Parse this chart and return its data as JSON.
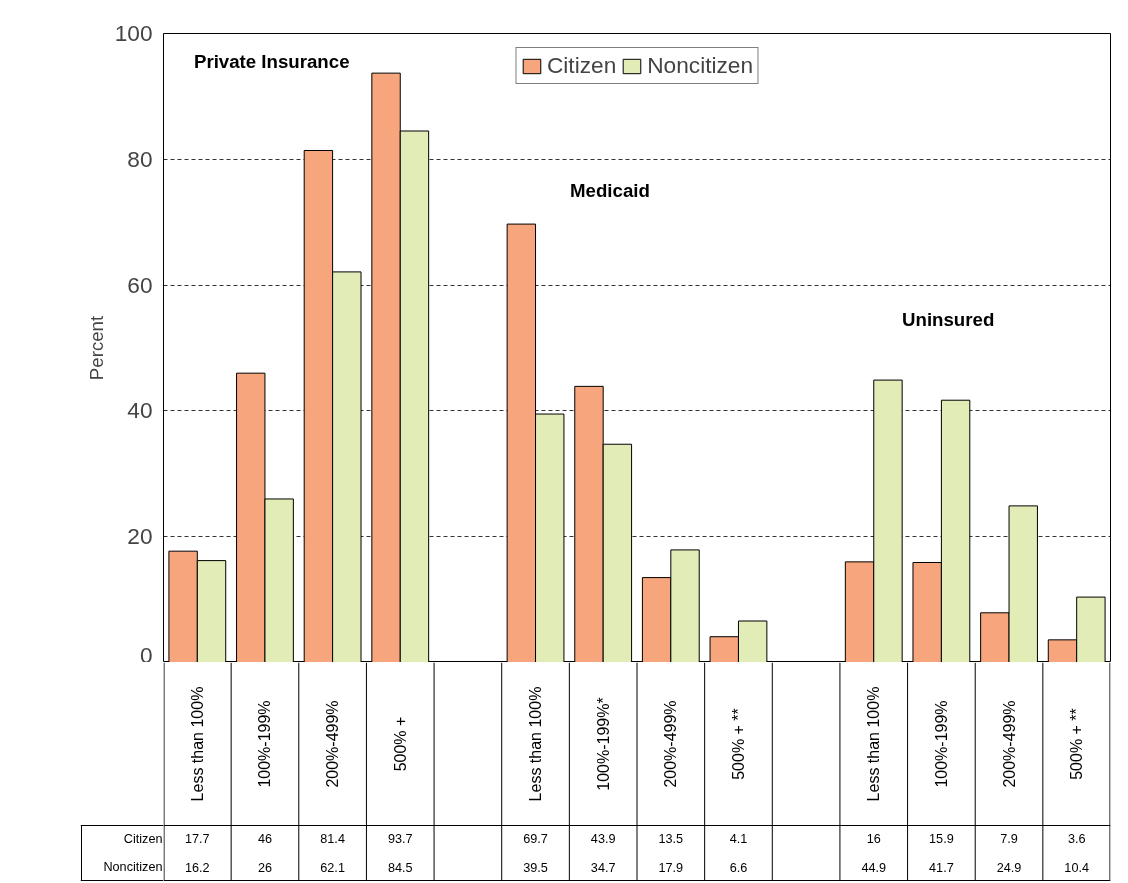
{
  "chart_data": {
    "type": "bar",
    "ylabel": "Percent",
    "categories": [
      "Less than 100%",
      "100%-199%",
      "200%-499%",
      "500% +",
      null,
      "Less than 100%",
      "100%-199%*",
      "200%-499%",
      "500% + **",
      null,
      "Less than 100%",
      "100%-199%",
      "200%-499%",
      "500% + **"
    ],
    "series": [
      {
        "name": "Citizen",
        "color": "#f7a57c",
        "values": [
          17.7,
          46,
          81.4,
          93.7,
          null,
          69.7,
          43.9,
          13.5,
          4.1,
          null,
          16,
          15.9,
          7.9,
          3.6
        ]
      },
      {
        "name": "Noncitizen",
        "color": "#e2ecb6",
        "values": [
          16.2,
          26,
          62.1,
          84.5,
          null,
          39.5,
          34.7,
          17.9,
          6.6,
          null,
          44.9,
          41.7,
          24.9,
          10.4
        ]
      }
    ],
    "annotations": [
      "Private Insurance",
      "Medicaid",
      "Uninsured"
    ],
    "ylim": [
      0,
      100
    ],
    "yticks": [
      0,
      20,
      40,
      60,
      80,
      100
    ],
    "grid": "y",
    "legend": "top",
    "data_labels": true
  }
}
